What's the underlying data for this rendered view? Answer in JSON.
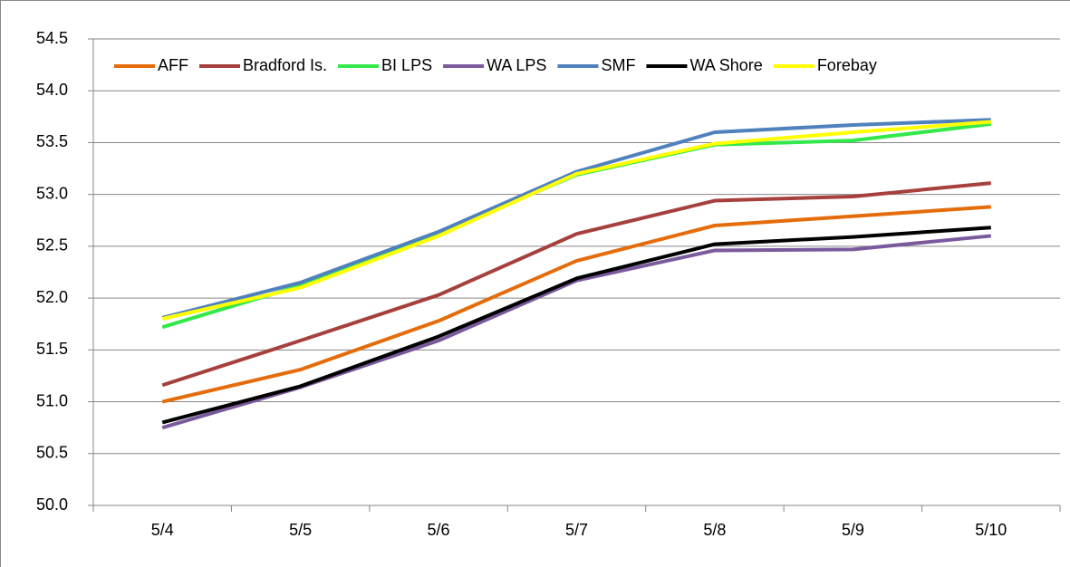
{
  "chart_data": {
    "type": "line",
    "categories": [
      "5/4",
      "5/5",
      "5/6",
      "5/7",
      "5/8",
      "5/9",
      "5/10"
    ],
    "series": [
      {
        "name": "AFF",
        "color": "#e46c0a",
        "values": [
          51.0,
          51.31,
          51.78,
          52.36,
          52.7,
          52.79,
          52.88
        ]
      },
      {
        "name": "Bradford Is.",
        "color": "#a5403d",
        "values": [
          51.16,
          51.59,
          52.03,
          52.62,
          52.94,
          52.98,
          53.11
        ]
      },
      {
        "name": "BI LPS",
        "color": "#33e84a",
        "values": [
          51.72,
          52.12,
          52.62,
          53.19,
          53.48,
          53.52,
          53.68
        ]
      },
      {
        "name": "WA LPS",
        "color": "#7a5a9c",
        "values": [
          50.75,
          51.14,
          51.59,
          52.17,
          52.46,
          52.47,
          52.6
        ]
      },
      {
        "name": "SMF",
        "color": "#4f81bd",
        "values": [
          51.81,
          52.15,
          52.64,
          53.22,
          53.6,
          53.67,
          53.72
        ]
      },
      {
        "name": "WA Shore",
        "color": "#000000",
        "values": [
          50.8,
          51.15,
          51.63,
          52.19,
          52.52,
          52.59,
          52.68
        ]
      },
      {
        "name": "Forebay",
        "color": "#ffff00",
        "values": [
          51.8,
          52.1,
          52.6,
          53.2,
          53.49,
          53.6,
          53.7
        ]
      }
    ],
    "ylim": [
      50.0,
      54.5
    ],
    "yticks": [
      {
        "value": 50,
        "label": "50.0"
      },
      50.5,
      {
        "value": 51,
        "label": "51.0"
      },
      51.5,
      {
        "value": 52,
        "label": "52.0"
      },
      52.5,
      {
        "value": 53,
        "label": "53.0"
      },
      53.5,
      {
        "value": 54,
        "label": "54.0"
      },
      54.5
    ],
    "grid": true,
    "legend": "top"
  }
}
